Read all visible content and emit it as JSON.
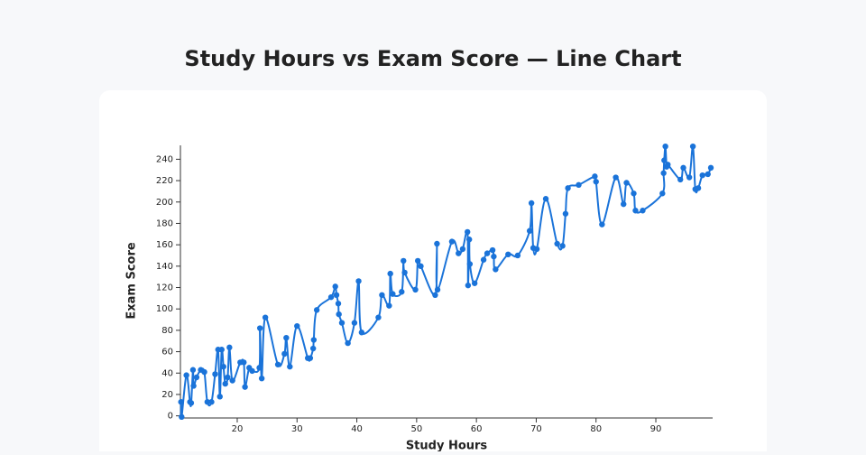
{
  "chart_data": {
    "type": "line",
    "title": "Study Hours vs Exam Score — Line Chart",
    "x_label": "Study Hours",
    "y_label": "Exam Score",
    "xlim": [
      10.5,
      99.5
    ],
    "ylim": [
      -2,
      253
    ],
    "xticks": [
      20,
      30,
      40,
      50,
      60,
      70,
      80,
      90
    ],
    "yticks": [
      0,
      20,
      40,
      60,
      80,
      100,
      120,
      140,
      160,
      180,
      200,
      220,
      240
    ],
    "series": [
      {
        "name": "Exam Score",
        "color": "#1a73d9",
        "x": [
          10.6,
          10.7,
          11.5,
          12.1,
          12.3,
          12.6,
          12.7,
          13.2,
          13.9,
          14.5,
          15.0,
          15.7,
          16.3,
          16.8,
          17.1,
          17.4,
          17.7,
          18.0,
          18.4,
          18.7,
          19.2,
          20.5,
          21.1,
          21.3,
          22.0,
          22.5,
          23.7,
          23.8,
          24.1,
          24.7,
          26.8,
          27.9,
          28.2,
          28.8,
          30.0,
          31.8,
          32.2,
          32.7,
          32.8,
          33.3,
          35.7,
          36.4,
          36.6,
          36.9,
          37.0,
          37.5,
          38.5,
          39.6,
          40.3,
          40.8,
          43.6,
          44.2,
          45.4,
          45.6,
          46.0,
          47.5,
          47.8,
          48.0,
          49.8,
          50.2,
          50.7,
          53.1,
          53.4,
          53.5,
          55.9,
          57.0,
          57.7,
          58.5,
          58.6,
          58.8,
          58.9,
          59.7,
          61.2,
          61.8,
          62.7,
          62.9,
          63.2,
          65.3,
          66.9,
          68.9,
          69.2,
          69.5,
          70.1,
          71.6,
          73.5,
          74.4,
          74.9,
          75.3,
          77.1,
          79.8,
          80.0,
          81.0,
          83.3,
          84.6,
          85.1,
          86.3,
          86.6,
          87.8,
          91.1,
          91.3,
          91.4,
          91.6,
          91.8,
          92.0,
          94.1,
          94.6,
          95.6,
          96.2,
          96.6,
          97.1,
          97.8,
          98.7,
          99.2
        ],
        "values": [
          13,
          -1,
          38,
          13,
          12,
          43,
          28,
          36,
          43,
          41,
          13,
          13,
          39,
          62,
          18,
          62,
          46,
          30,
          36,
          64,
          33,
          50,
          50,
          27,
          45,
          42,
          45,
          82,
          35,
          92,
          48,
          58,
          73,
          46,
          84,
          54,
          54,
          63,
          71,
          99,
          111,
          121,
          113,
          105,
          95,
          87,
          68,
          87,
          126,
          78,
          92,
          113,
          103,
          133,
          114,
          116,
          145,
          134,
          118,
          145,
          140,
          113,
          161,
          118,
          163,
          152,
          156,
          172,
          122,
          165,
          142,
          124,
          146,
          152,
          155,
          149,
          137,
          151,
          150,
          173,
          199,
          157,
          156,
          203,
          161,
          159,
          189,
          213,
          216,
          224,
          219,
          179,
          223,
          198,
          218,
          208,
          192,
          192,
          208,
          227,
          239,
          252,
          233,
          235,
          221,
          232,
          223,
          252,
          212,
          213,
          225,
          226,
          232
        ]
      }
    ]
  }
}
